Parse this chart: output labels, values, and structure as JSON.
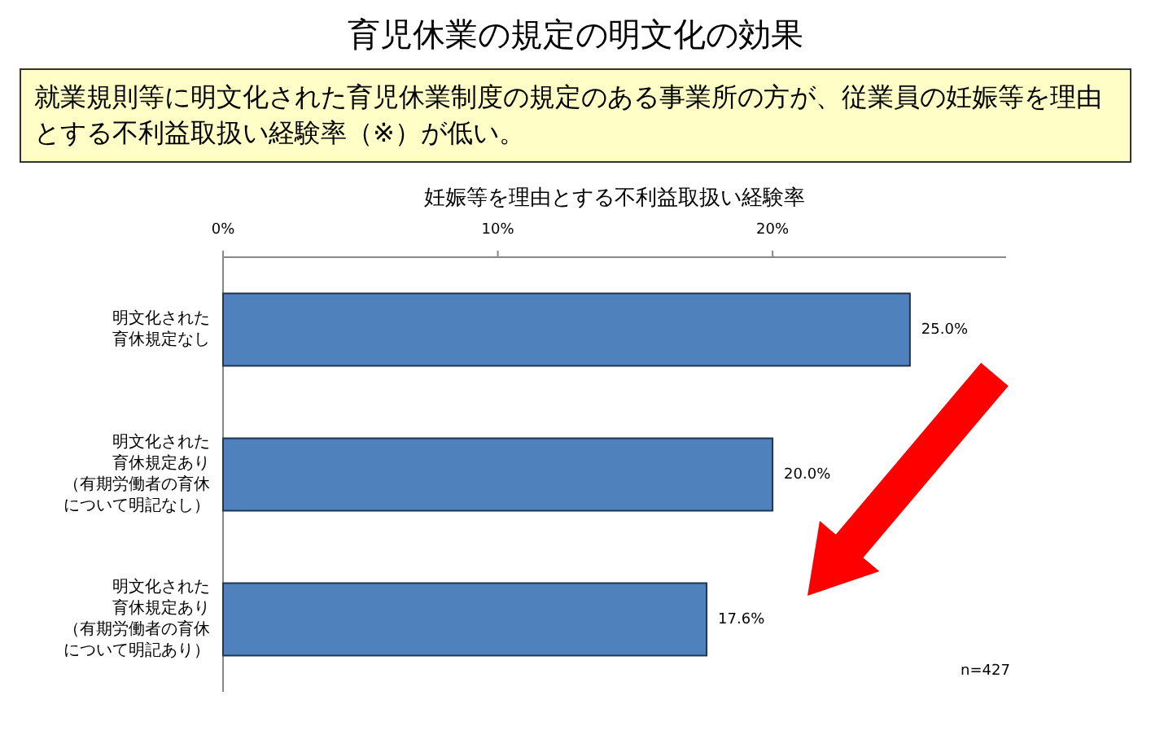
{
  "chart_data": {
    "type": "bar",
    "orientation": "horizontal",
    "title": "育児休業の規定の明文化の効果",
    "subtitle": "就業規則等に明文化された育児休業制度の規定のある事業所の方が、従業員の妊娠等を理由とする不利益取扱い経験率（※）が低い。",
    "xlabel": "妊娠等を理由とする不利益取扱い経験率",
    "categories": [
      "明文化された育休規定なし",
      "明文化された育休規定あり（有期労働者の育休について明記なし）",
      "明文化された育休規定あり（有期労働者の育休について明記あり）"
    ],
    "values": [
      25.0,
      20.0,
      17.6
    ],
    "value_labels": [
      "25.0%",
      "20.0%",
      "17.6%"
    ],
    "color": "#4f81bd",
    "xlim": [
      0,
      28.5
    ],
    "xticks": [
      {
        "value": 0,
        "label": "0%"
      },
      {
        "value": 10,
        "label": "10%"
      },
      {
        "value": 20,
        "label": "20%"
      }
    ],
    "annotations": [
      "n=427"
    ],
    "grid": false
  }
}
